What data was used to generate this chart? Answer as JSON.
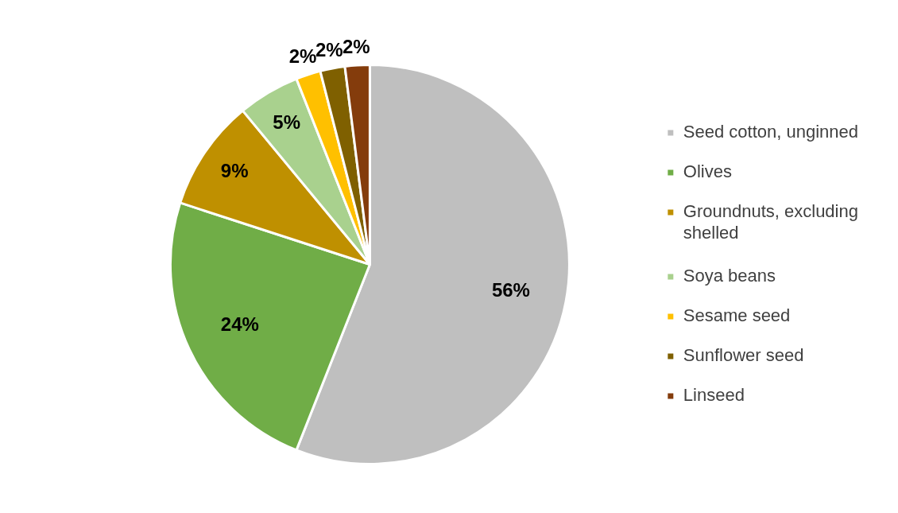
{
  "chart_data": {
    "type": "pie",
    "categories": [
      "Seed cotton, unginned",
      "Olives",
      "Groundnuts, excluding shelled",
      "Soya beans",
      "Sesame seed",
      "Sunflower seed",
      "Linseed"
    ],
    "values": [
      56,
      24,
      9,
      5,
      2,
      2,
      2
    ],
    "colors": [
      "#bfbfbf",
      "#70ad47",
      "#bf9000",
      "#a9d18e",
      "#ffc000",
      "#7f6000",
      "#843c0c"
    ],
    "value_labels": [
      "56%",
      "24%",
      "9%",
      "5%",
      "2%",
      "2%",
      "2%"
    ],
    "legend": "right"
  }
}
